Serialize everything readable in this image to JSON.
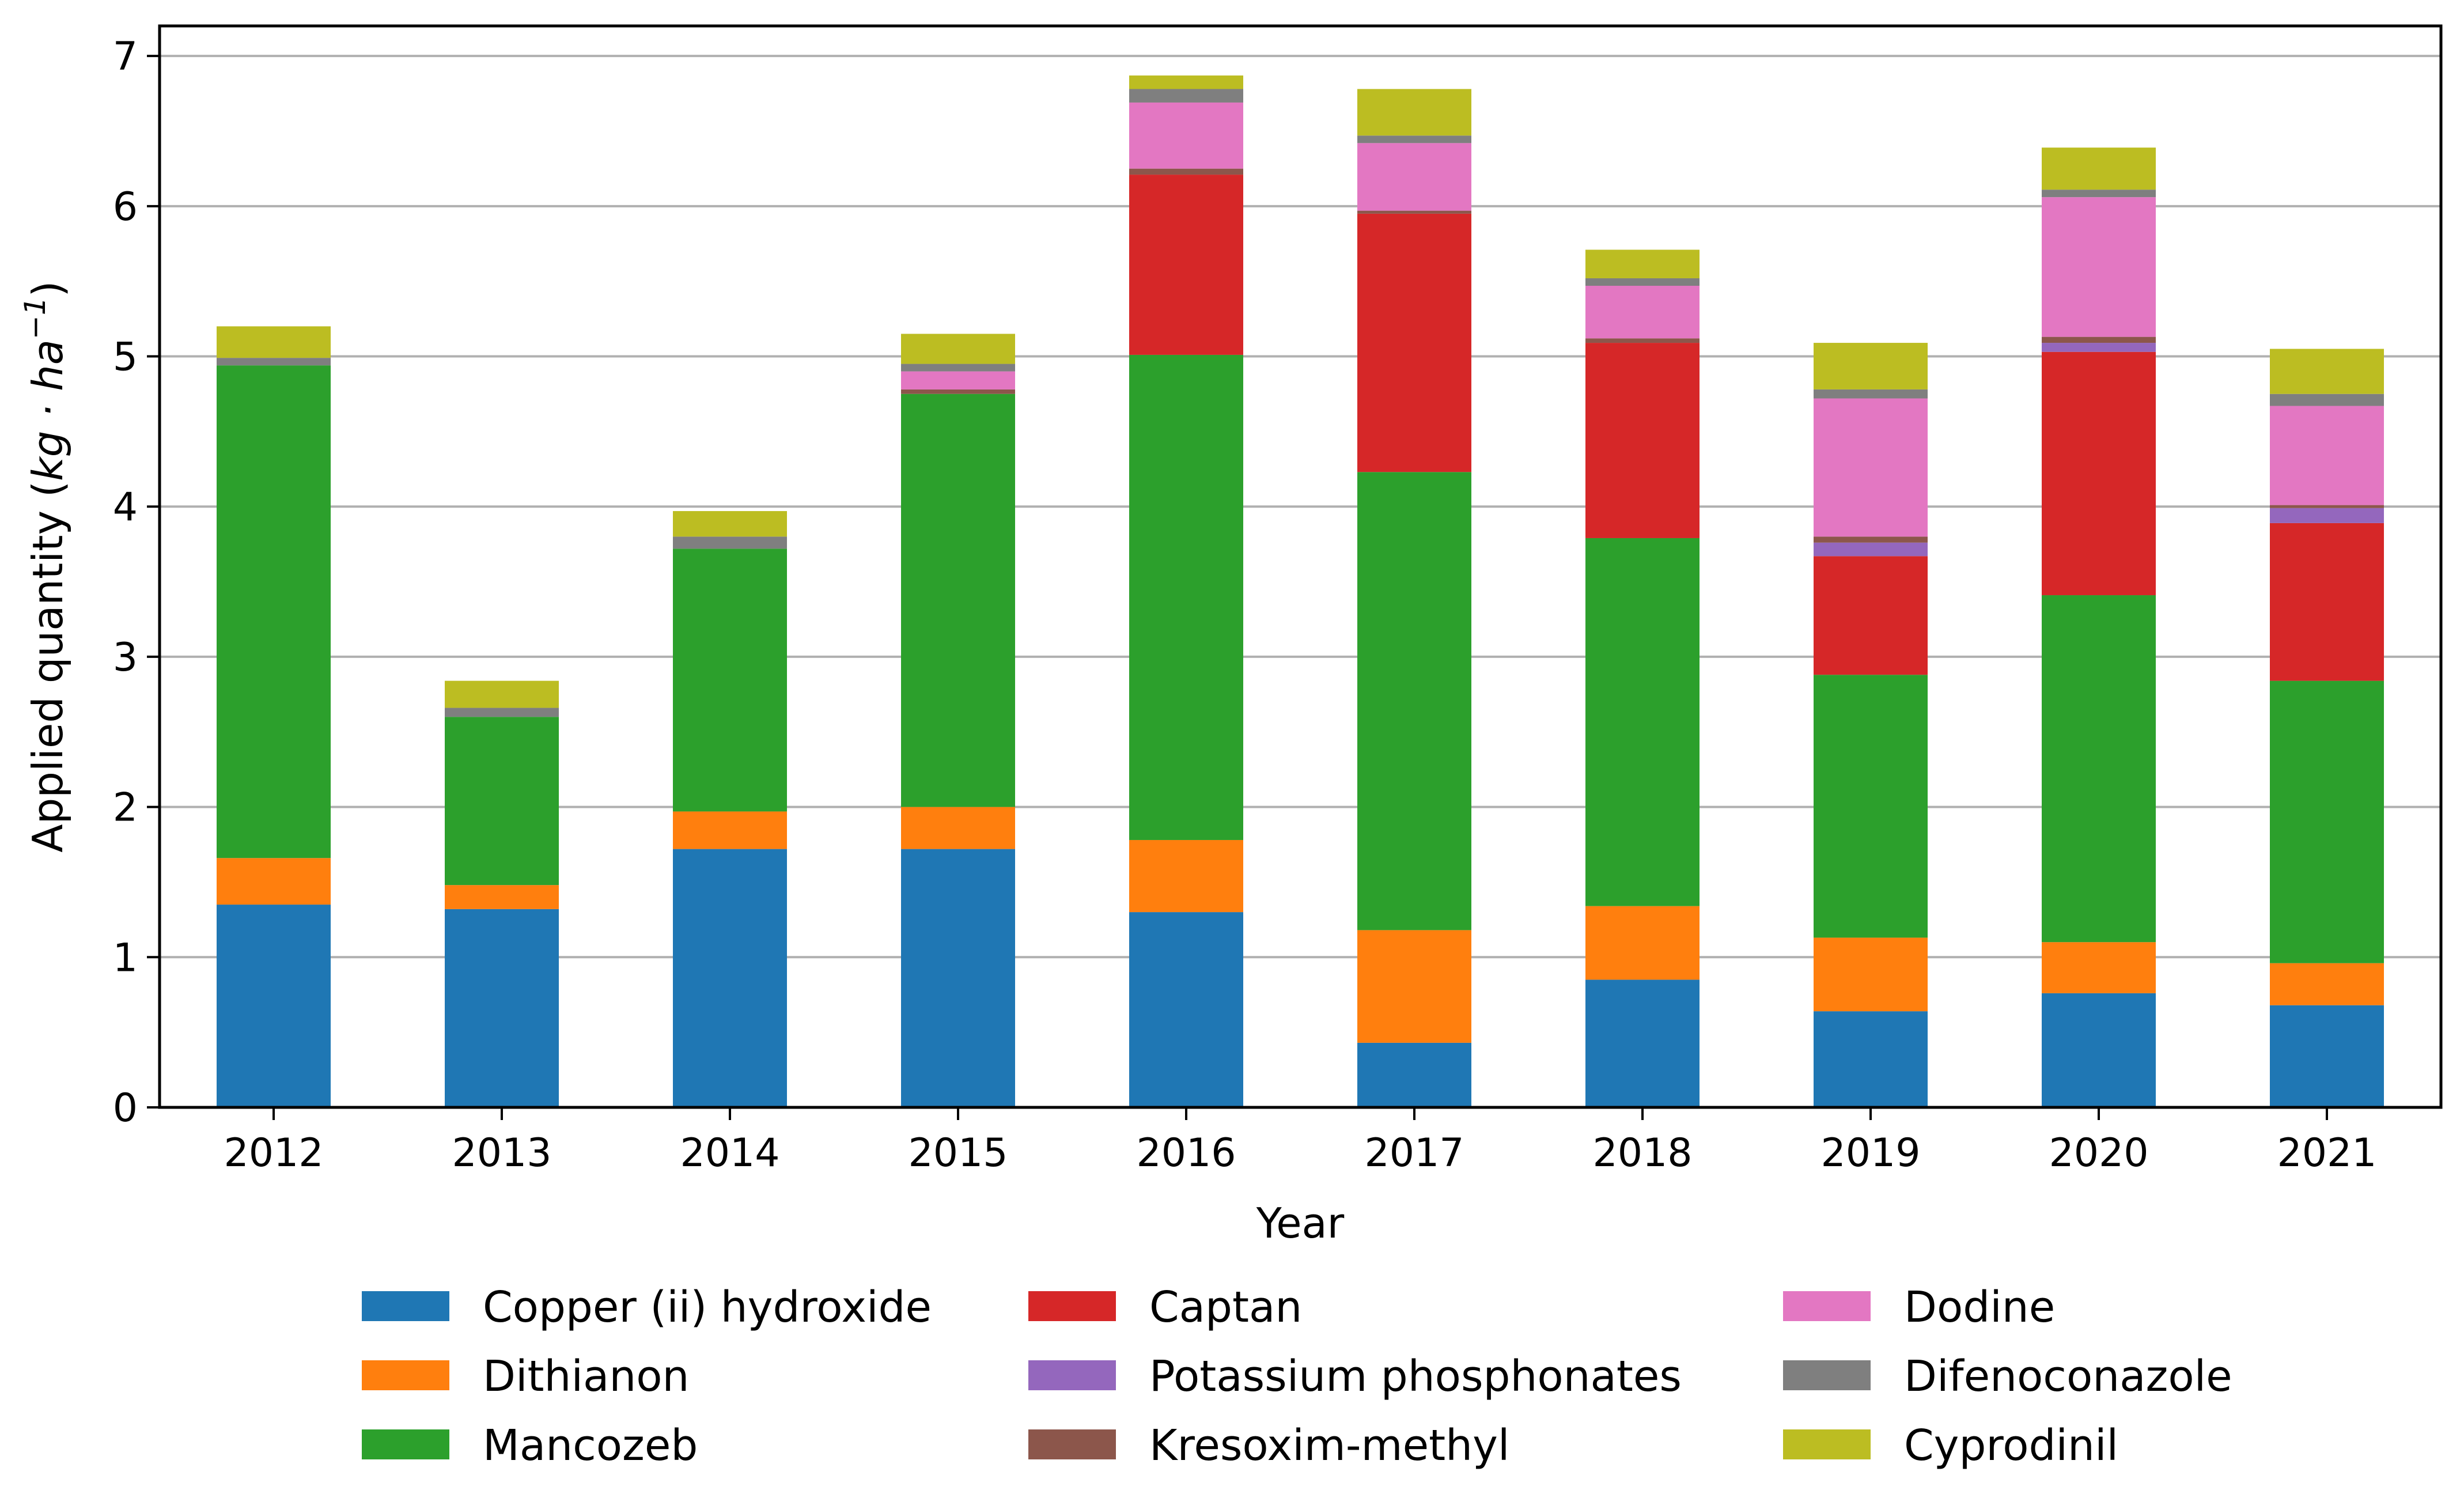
{
  "chart_data": {
    "type": "bar",
    "stacked": true,
    "xlabel": "Year",
    "ylabel_prefix": "Applied quantity (",
    "ylabel_unit": "kg · ha",
    "ylabel_exponent": "−1",
    "ylabel_suffix": ")",
    "ylim": [
      0,
      7.2
    ],
    "yticks": [
      0,
      1,
      2,
      3,
      4,
      5,
      6,
      7
    ],
    "grid": "horizontal",
    "legend_position": "bottom",
    "categories": [
      "2012",
      "2013",
      "2014",
      "2015",
      "2016",
      "2017",
      "2018",
      "2019",
      "2020",
      "2021"
    ],
    "series": [
      {
        "name": "Copper (ii) hydroxide",
        "color": "#1f77b4",
        "values": [
          1.35,
          1.32,
          1.72,
          1.72,
          1.3,
          0.43,
          0.85,
          0.64,
          0.76,
          0.68
        ]
      },
      {
        "name": "Dithianon",
        "color": "#ff7f0e",
        "values": [
          0.31,
          0.16,
          0.25,
          0.28,
          0.48,
          0.75,
          0.49,
          0.49,
          0.34,
          0.28
        ]
      },
      {
        "name": "Mancozeb",
        "color": "#2ca02c",
        "values": [
          3.28,
          1.12,
          1.75,
          2.75,
          3.23,
          3.05,
          2.45,
          1.75,
          2.31,
          1.88
        ]
      },
      {
        "name": "Captan",
        "color": "#d62728",
        "values": [
          0,
          0,
          0,
          0,
          1.2,
          1.72,
          1.3,
          0.79,
          1.62,
          1.05
        ]
      },
      {
        "name": "Potassium phosphonates",
        "color": "#9467bd",
        "values": [
          0,
          0,
          0,
          0,
          0,
          0,
          0,
          0.09,
          0.06,
          0.1
        ]
      },
      {
        "name": "Kresoxim-methyl",
        "color": "#8c564b",
        "values": [
          0,
          0,
          0,
          0.03,
          0.04,
          0.02,
          0.03,
          0.04,
          0.04,
          0.02
        ]
      },
      {
        "name": "Dodine",
        "color": "#e377c2",
        "values": [
          0,
          0,
          0,
          0.12,
          0.44,
          0.45,
          0.35,
          0.92,
          0.93,
          0.66
        ]
      },
      {
        "name": "Difenoconazole",
        "color": "#7f7f7f",
        "values": [
          0.05,
          0.06,
          0.08,
          0.05,
          0.09,
          0.05,
          0.05,
          0.06,
          0.05,
          0.08
        ]
      },
      {
        "name": "Cyprodinil",
        "color": "#bcbd22",
        "values": [
          0.21,
          0.18,
          0.17,
          0.2,
          0.09,
          0.31,
          0.19,
          0.31,
          0.28,
          0.3
        ]
      }
    ]
  }
}
